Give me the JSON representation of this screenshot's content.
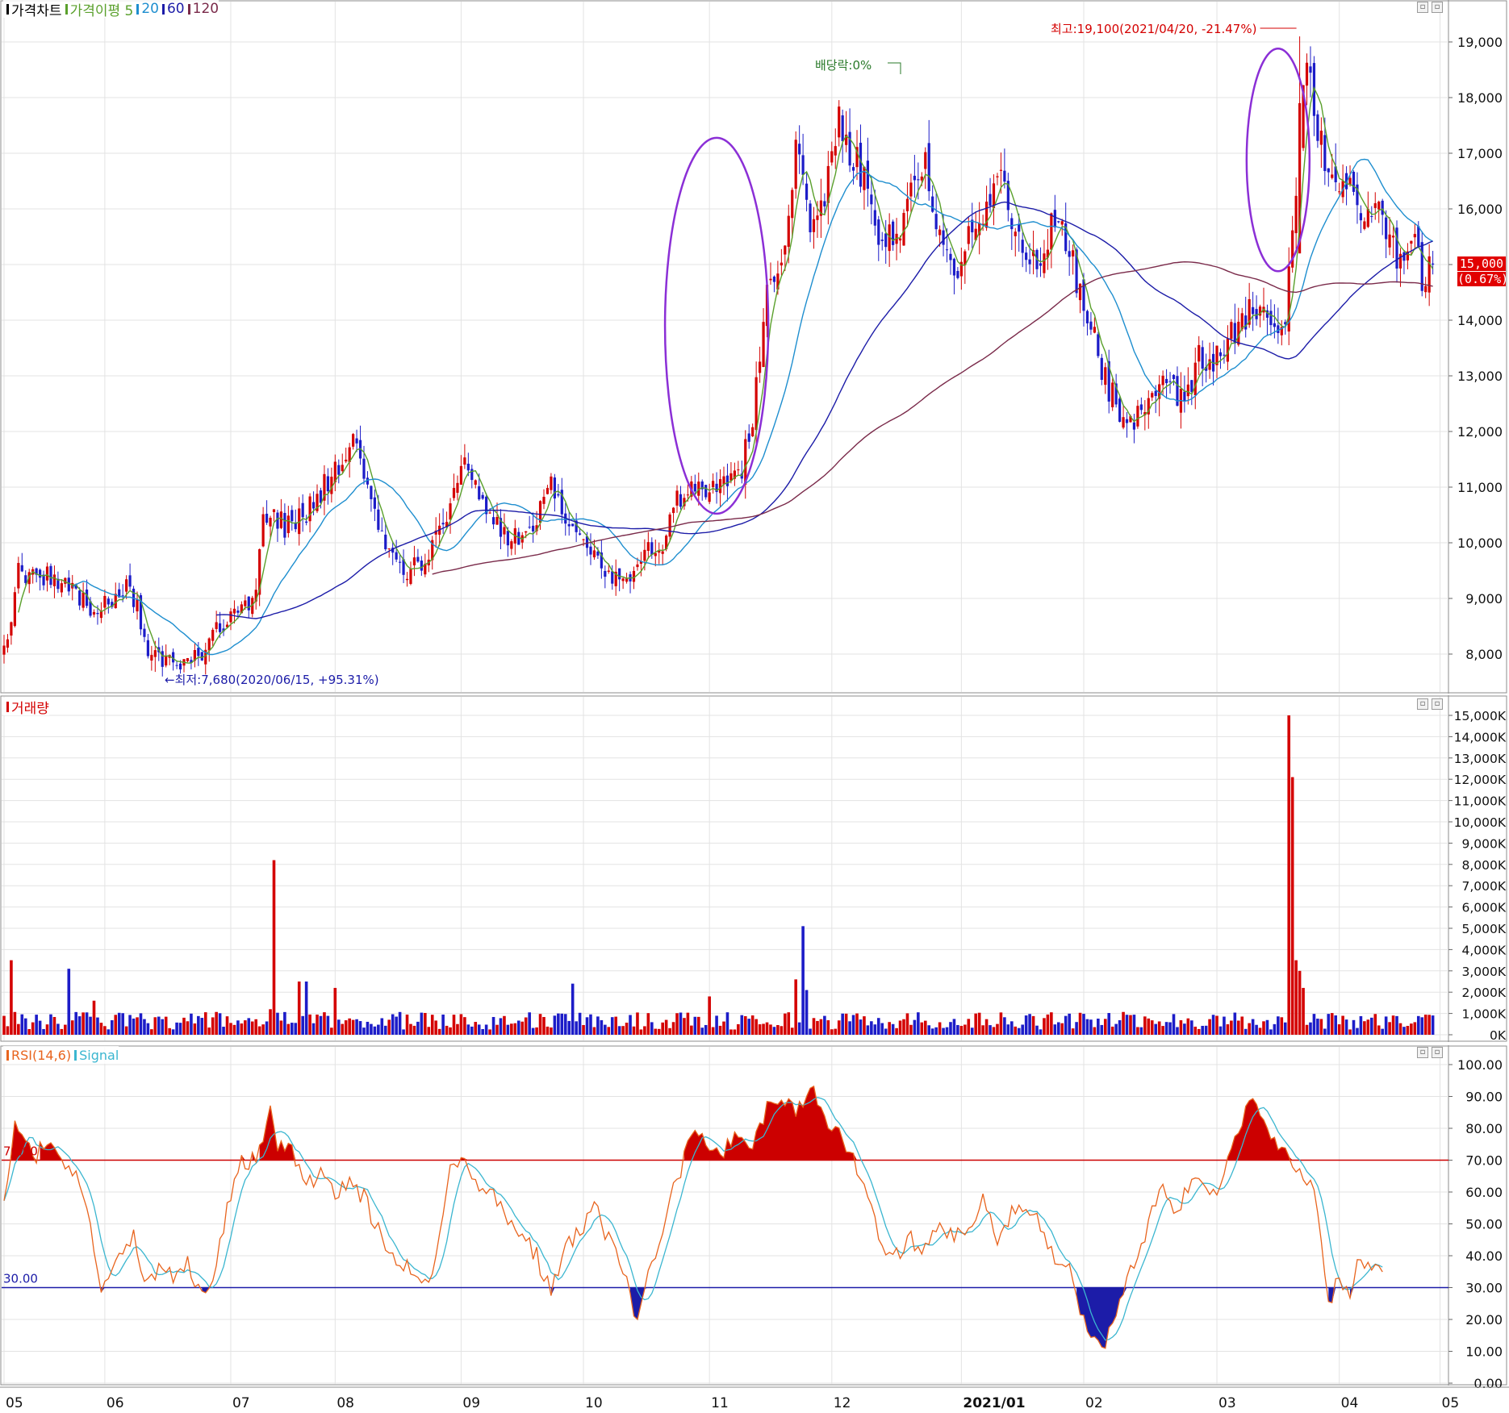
{
  "legends": {
    "price": [
      {
        "label": "가격차트",
        "color": "#000000"
      },
      {
        "label": "가격이평 5",
        "color": "#5aa02c"
      },
      {
        "label": "20",
        "color": "#1e8ecf"
      },
      {
        "label": "60",
        "color": "#1c1ca8"
      },
      {
        "label": "120",
        "color": "#7a2a4a"
      }
    ],
    "volume": [
      {
        "label": "거래량",
        "color": "#d40000"
      }
    ],
    "rsi": [
      {
        "label": "RSI(14,6)",
        "color": "#e8641e"
      },
      {
        "label": "Signal",
        "color": "#3bb6d0"
      }
    ]
  },
  "colors": {
    "up": "#d40000",
    "down": "#1c1cc8",
    "ma5": "#5aa02c",
    "ma20": "#1e8ecf",
    "ma60": "#1c1ca8",
    "ma120": "#7a2a4a",
    "rsi": "#e8641e",
    "signal": "#3bb6d0",
    "highlight_ellipse": "#8b2fd6",
    "grid": "#e3e3e3"
  },
  "annotations": {
    "high": "최고:19,100(2021/04/20, -21.47%)",
    "low": "←최저:7,680(2020/06/15, +95.31%)",
    "dividend": "배당락:0%",
    "last_price": "15,000",
    "last_change": "(0.67%)",
    "rsi_upper_label": "70.00",
    "rsi_lower_label": "30.00"
  },
  "window_buttons": [
    "▫",
    "▫"
  ],
  "chart_data": [
    {
      "type": "candlestick",
      "title": "가격차트",
      "x_ticks": [
        "05",
        "06",
        "07",
        "08",
        "09",
        "10",
        "11",
        "12",
        "2021/01",
        "02",
        "03",
        "04",
        "05"
      ],
      "ylim": [
        7400,
        19500
      ],
      "y_ticks": [
        "8,000",
        "9,000",
        "10,000",
        "11,000",
        "12,000",
        "13,000",
        "14,000",
        "15,000",
        "16,000",
        "17,000",
        "18,000",
        "19,000"
      ],
      "anchors": [
        [
          0,
          8000
        ],
        [
          4,
          9500
        ],
        [
          12,
          9400
        ],
        [
          18,
          9200
        ],
        [
          24,
          8800
        ],
        [
          30,
          9000
        ],
        [
          34,
          9300
        ],
        [
          37,
          8900
        ],
        [
          40,
          8000
        ],
        [
          50,
          7800
        ],
        [
          55,
          8000
        ],
        [
          58,
          8450
        ],
        [
          64,
          8700
        ],
        [
          70,
          9000
        ],
        [
          72,
          10500
        ],
        [
          78,
          10300
        ],
        [
          84,
          10500
        ],
        [
          88,
          10900
        ],
        [
          92,
          11300
        ],
        [
          96,
          11900
        ],
        [
          100,
          11400
        ],
        [
          104,
          10300
        ],
        [
          108,
          9700
        ],
        [
          112,
          9500
        ],
        [
          116,
          9600
        ],
        [
          120,
          10000
        ],
        [
          124,
          10800
        ],
        [
          128,
          11400
        ],
        [
          132,
          11000
        ],
        [
          136,
          10400
        ],
        [
          140,
          10000
        ],
        [
          144,
          10100
        ],
        [
          148,
          10300
        ],
        [
          152,
          11200
        ],
        [
          156,
          10500
        ],
        [
          160,
          10000
        ],
        [
          164,
          9900
        ],
        [
          168,
          9500
        ],
        [
          172,
          9300
        ],
        [
          176,
          9700
        ],
        [
          180,
          9900
        ],
        [
          184,
          10000
        ],
        [
          186,
          10800
        ],
        [
          192,
          11000
        ],
        [
          198,
          11000
        ],
        [
          204,
          11100
        ],
        [
          208,
          12200
        ],
        [
          212,
          14800
        ],
        [
          216,
          15200
        ],
        [
          220,
          16900
        ],
        [
          224,
          15800
        ],
        [
          228,
          16200
        ],
        [
          232,
          17600
        ],
        [
          236,
          17000
        ],
        [
          240,
          16300
        ],
        [
          244,
          15300
        ],
        [
          248,
          15700
        ],
        [
          252,
          16200
        ],
        [
          256,
          16800
        ],
        [
          260,
          15400
        ],
        [
          264,
          14800
        ],
        [
          268,
          15700
        ],
        [
          272,
          15500
        ],
        [
          276,
          16700
        ],
        [
          280,
          15900
        ],
        [
          284,
          15400
        ],
        [
          288,
          14900
        ],
        [
          292,
          15800
        ],
        [
          296,
          15200
        ],
        [
          300,
          14100
        ],
        [
          304,
          13400
        ],
        [
          308,
          12600
        ],
        [
          312,
          12000
        ],
        [
          316,
          12500
        ],
        [
          320,
          12700
        ],
        [
          324,
          13000
        ],
        [
          328,
          12400
        ],
        [
          332,
          13300
        ],
        [
          336,
          13200
        ],
        [
          340,
          13600
        ],
        [
          344,
          14000
        ],
        [
          348,
          14300
        ],
        [
          352,
          14100
        ],
        [
          354,
          13900
        ],
        [
          356,
          14200
        ],
        [
          360,
          17200
        ],
        [
          362,
          18600
        ],
        [
          364,
          17500
        ],
        [
          368,
          16800
        ],
        [
          372,
          16500
        ],
        [
          376,
          16000
        ],
        [
          380,
          16200
        ],
        [
          384,
          15700
        ],
        [
          388,
          15000
        ],
        [
          392,
          15300
        ],
        [
          394,
          14700
        ],
        [
          397,
          15000
        ]
      ],
      "last_close": 15000,
      "high": 19100,
      "low": 7680,
      "moving_averages": [
        5,
        20,
        60,
        120
      ],
      "annotations": [
        "최고:19,100(2021/04/20, -21.47%)",
        "←최저:7,680(2020/06/15, +95.31%)",
        "배당락:0%"
      ]
    },
    {
      "type": "bar",
      "title": "거래량",
      "ylim": [
        0,
        15000
      ],
      "y_ticks": [
        "0K",
        "1,000K",
        "2,000K",
        "3,000K",
        "4,000K",
        "5,000K",
        "6,000K",
        "7,000K",
        "8,000K",
        "9,000K",
        "10,000K",
        "11,000K",
        "12,000K",
        "13,000K",
        "14,000K",
        "15,000K"
      ],
      "spikes": [
        [
          2,
          3500
        ],
        [
          18,
          3100
        ],
        [
          25,
          1600
        ],
        [
          74,
          1200
        ],
        [
          75,
          8200
        ],
        [
          82,
          2500
        ],
        [
          84,
          2500
        ],
        [
          92,
          2200
        ],
        [
          158,
          2400
        ],
        [
          196,
          1800
        ],
        [
          220,
          2600
        ],
        [
          222,
          5100
        ],
        [
          223,
          2100
        ],
        [
          357,
          15000
        ],
        [
          358,
          12100
        ],
        [
          359,
          3500
        ],
        [
          360,
          3000
        ],
        [
          361,
          2200
        ]
      ],
      "typical_k": 700
    },
    {
      "type": "line",
      "title": "RSI(14,6)",
      "series_names": [
        "RSI(14,6)",
        "Signal"
      ],
      "ylim": [
        0,
        100
      ],
      "y_ticks": [
        "0.00",
        "10.00",
        "20.00",
        "30.00",
        "40.00",
        "50.00",
        "60.00",
        "70.00",
        "80.00",
        "90.00",
        "100.00"
      ],
      "reference_lines": [
        70,
        30
      ],
      "rsi_anchors": [
        [
          0,
          56
        ],
        [
          3,
          80
        ],
        [
          9,
          72
        ],
        [
          12,
          75
        ],
        [
          16,
          70
        ],
        [
          20,
          67
        ],
        [
          24,
          50
        ],
        [
          27,
          30
        ],
        [
          30,
          35
        ],
        [
          33,
          40
        ],
        [
          36,
          46
        ],
        [
          40,
          30
        ],
        [
          43,
          36
        ],
        [
          47,
          34
        ],
        [
          51,
          38
        ],
        [
          55,
          28
        ],
        [
          58,
          32
        ],
        [
          62,
          55
        ],
        [
          66,
          70
        ],
        [
          70,
          70
        ],
        [
          74,
          86
        ],
        [
          76,
          74
        ],
        [
          80,
          72
        ],
        [
          84,
          63
        ],
        [
          88,
          65
        ],
        [
          92,
          60
        ],
        [
          96,
          62
        ],
        [
          100,
          58
        ],
        [
          104,
          48
        ],
        [
          108,
          40
        ],
        [
          112,
          37
        ],
        [
          116,
          29
        ],
        [
          120,
          40
        ],
        [
          124,
          67
        ],
        [
          128,
          69
        ],
        [
          132,
          62
        ],
        [
          136,
          61
        ],
        [
          140,
          50
        ],
        [
          144,
          47
        ],
        [
          148,
          40
        ],
        [
          150,
          33
        ],
        [
          152,
          29
        ],
        [
          156,
          42
        ],
        [
          160,
          48
        ],
        [
          164,
          56
        ],
        [
          168,
          45
        ],
        [
          172,
          35
        ],
        [
          176,
          18
        ],
        [
          179,
          33
        ],
        [
          182,
          41
        ],
        [
          186,
          60
        ],
        [
          190,
          75
        ],
        [
          194,
          80
        ],
        [
          196,
          75
        ],
        [
          200,
          72
        ],
        [
          204,
          79
        ],
        [
          208,
          74
        ],
        [
          212,
          86
        ],
        [
          216,
          89
        ],
        [
          220,
          85
        ],
        [
          224,
          93
        ],
        [
          228,
          84
        ],
        [
          232,
          78
        ],
        [
          236,
          70
        ],
        [
          240,
          58
        ],
        [
          244,
          42
        ],
        [
          248,
          40
        ],
        [
          252,
          45
        ],
        [
          256,
          42
        ],
        [
          260,
          50
        ],
        [
          264,
          45
        ],
        [
          268,
          48
        ],
        [
          272,
          57
        ],
        [
          276,
          45
        ],
        [
          280,
          53
        ],
        [
          284,
          55
        ],
        [
          288,
          50
        ],
        [
          292,
          40
        ],
        [
          296,
          35
        ],
        [
          300,
          20
        ],
        [
          304,
          12
        ],
        [
          306,
          10
        ],
        [
          310,
          28
        ],
        [
          314,
          38
        ],
        [
          318,
          50
        ],
        [
          322,
          62
        ],
        [
          326,
          52
        ],
        [
          330,
          65
        ],
        [
          334,
          60
        ],
        [
          338,
          62
        ],
        [
          342,
          75
        ],
        [
          346,
          88
        ],
        [
          348,
          90
        ],
        [
          352,
          78
        ],
        [
          356,
          72
        ],
        [
          360,
          65
        ],
        [
          364,
          62
        ],
        [
          366,
          42
        ],
        [
          368,
          25
        ],
        [
          371,
          34
        ],
        [
          374,
          28
        ],
        [
          377,
          40
        ],
        [
          380,
          35
        ],
        [
          383,
          37
        ]
      ]
    }
  ]
}
